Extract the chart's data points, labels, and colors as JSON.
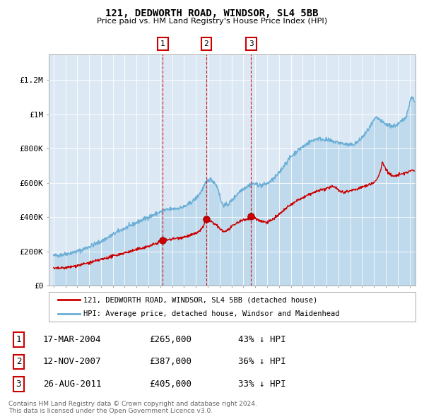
{
  "title": "121, DEDWORTH ROAD, WINDSOR, SL4 5BB",
  "subtitle": "Price paid vs. HM Land Registry's House Price Index (HPI)",
  "bg_color": "#dce9f5",
  "hpi_color": "#6baed6",
  "sale_color": "#cc0000",
  "transactions": [
    {
      "num": 1,
      "date": "17-MAR-2004",
      "x_year": 2004.21,
      "price": 265000,
      "hpi_pct": "43% ↓ HPI"
    },
    {
      "num": 2,
      "date": "12-NOV-2007",
      "x_year": 2007.87,
      "price": 387000,
      "hpi_pct": "36% ↓ HPI"
    },
    {
      "num": 3,
      "date": "26-AUG-2011",
      "x_year": 2011.65,
      "price": 405000,
      "hpi_pct": "33% ↓ HPI"
    }
  ],
  "ylabel_ticks": [
    "£0",
    "£200K",
    "£400K",
    "£600K",
    "£800K",
    "£1M",
    "£1.2M"
  ],
  "ytick_values": [
    0,
    200000,
    400000,
    600000,
    800000,
    1000000,
    1200000
  ],
  "xlim": [
    1994.6,
    2025.5
  ],
  "ylim": [
    0,
    1350000
  ],
  "legend_label_red": "121, DEDWORTH ROAD, WINDSOR, SL4 5BB (detached house)",
  "legend_label_blue": "HPI: Average price, detached house, Windsor and Maidenhead",
  "table_rows": [
    [
      1,
      "17-MAR-2004",
      "£265,000",
      "43% ↓ HPI"
    ],
    [
      2,
      "12-NOV-2007",
      "£387,000",
      "36% ↓ HPI"
    ],
    [
      3,
      "26-AUG-2011",
      "£405,000",
      "33% ↓ HPI"
    ]
  ],
  "footnote1": "Contains HM Land Registry data © Crown copyright and database right 2024.",
  "footnote2": "This data is licensed under the Open Government Licence v3.0."
}
